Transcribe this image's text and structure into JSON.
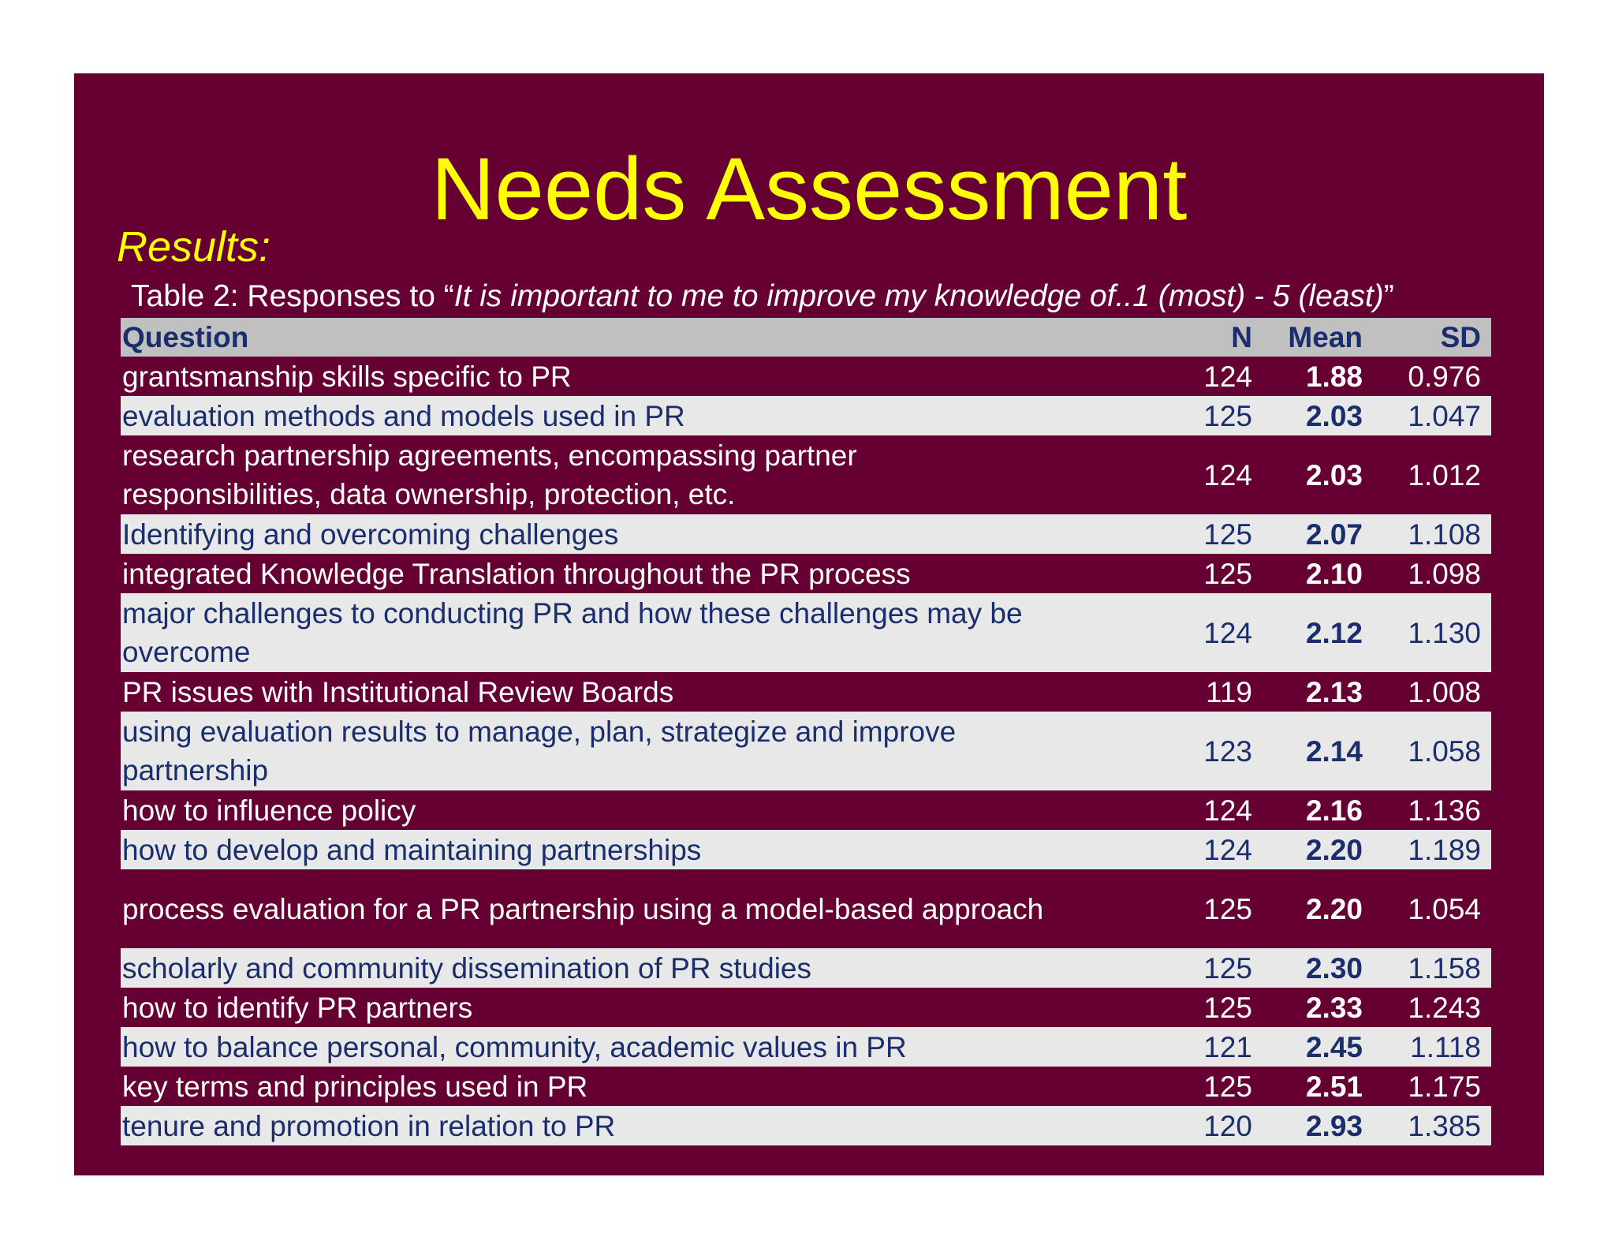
{
  "title": "Needs Assessment",
  "results_label": "Results:",
  "caption": {
    "prefix": "Table 2: Responses to “",
    "italic": "It is important to me to improve my knowledge of..1 (most) - 5 (least)",
    "suffix": "”"
  },
  "table": {
    "headers": {
      "question": "Question",
      "n": "N",
      "mean": "Mean",
      "sd": "SD"
    },
    "rows": [
      {
        "question": "grantsmanship skills specific to PR",
        "n": "124",
        "mean": "1.88",
        "sd": "0.976"
      },
      {
        "question": "evaluation methods and models used in PR",
        "n": "125",
        "mean": "2.03",
        "sd": "1.047"
      },
      {
        "question": "research partnership agreements, encompassing partner responsibilities, data ownership, protection, etc.",
        "n": "124",
        "mean": "2.03",
        "sd": "1.012"
      },
      {
        "question": "Identifying and overcoming challenges",
        "n": "125",
        "mean": "2.07",
        "sd": "1.108"
      },
      {
        "question": "integrated Knowledge Translation throughout the PR process",
        "n": "125",
        "mean": "2.10",
        "sd": "1.098"
      },
      {
        "question": "major challenges to conducting PR and how these challenges may be overcome",
        "n": "124",
        "mean": "2.12",
        "sd": "1.130"
      },
      {
        "question": "PR issues with Institutional Review Boards",
        "n": "119",
        "mean": "2.13",
        "sd": "1.008"
      },
      {
        "question": "using evaluation results to manage, plan, strategize and improve partnership",
        "n": "123",
        "mean": "2.14",
        "sd": "1.058"
      },
      {
        "question": "how to influence policy",
        "n": "124",
        "mean": "2.16",
        "sd": "1.136"
      },
      {
        "question": "how to develop and maintaining partnerships",
        "n": "124",
        "mean": "2.20",
        "sd": "1.189"
      },
      {
        "question": "process evaluation for a PR partnership using a model-based approach",
        "n": "125",
        "mean": "2.20",
        "sd": "1.054"
      },
      {
        "question": "scholarly and community dissemination of PR studies",
        "n": "125",
        "mean": "2.30",
        "sd": "1.158"
      },
      {
        "question": "how to identify PR partners",
        "n": "125",
        "mean": "2.33",
        "sd": "1.243"
      },
      {
        "question": "how to balance personal, community, academic values in PR",
        "n": "121",
        "mean": "2.45",
        "sd": "1.118"
      },
      {
        "question": "key terms and principles used in PR",
        "n": "125",
        "mean": "2.51",
        "sd": "1.175"
      },
      {
        "question": "tenure and promotion in relation to PR",
        "n": "120",
        "mean": "2.93",
        "sd": "1.385"
      }
    ]
  },
  "colors": {
    "slide_background": "#660033",
    "title": "#ffff00",
    "header_row": "#c0c0c0",
    "light_row": "#e8e8e8",
    "dark_text": "#1a2e6e"
  }
}
